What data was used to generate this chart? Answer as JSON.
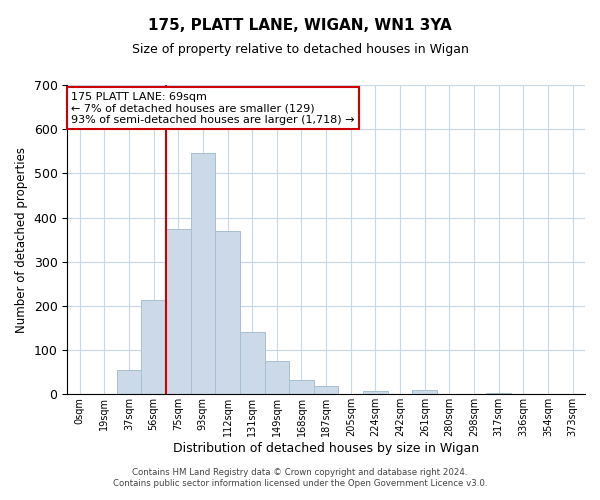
{
  "title": "175, PLATT LANE, WIGAN, WN1 3YA",
  "subtitle": "Size of property relative to detached houses in Wigan",
  "xlabel": "Distribution of detached houses by size in Wigan",
  "ylabel": "Number of detached properties",
  "bar_labels": [
    "0sqm",
    "19sqm",
    "37sqm",
    "56sqm",
    "75sqm",
    "93sqm",
    "112sqm",
    "131sqm",
    "149sqm",
    "168sqm",
    "187sqm",
    "205sqm",
    "224sqm",
    "242sqm",
    "261sqm",
    "280sqm",
    "298sqm",
    "317sqm",
    "336sqm",
    "354sqm",
    "373sqm"
  ],
  "bar_values": [
    0,
    0,
    54,
    214,
    375,
    546,
    369,
    141,
    76,
    33,
    19,
    0,
    8,
    0,
    9,
    0,
    0,
    2,
    0,
    0,
    0
  ],
  "bar_color": "#ccd9e8",
  "bar_edge_color": "#a8bfd0",
  "vline_x": 4,
  "vline_color": "#cc0000",
  "ylim": [
    0,
    700
  ],
  "yticks": [
    0,
    100,
    200,
    300,
    400,
    500,
    600,
    700
  ],
  "annotation_title": "175 PLATT LANE: 69sqm",
  "annotation_line1": "← 7% of detached houses are smaller (129)",
  "annotation_line2": "93% of semi-detached houses are larger (1,718) →",
  "annotation_box_color": "#ffffff",
  "annotation_box_edge": "#cc0000",
  "footer1": "Contains HM Land Registry data © Crown copyright and database right 2024.",
  "footer2": "Contains public sector information licensed under the Open Government Licence v3.0.",
  "background_color": "#ffffff",
  "grid_color": "#c8d8e8"
}
